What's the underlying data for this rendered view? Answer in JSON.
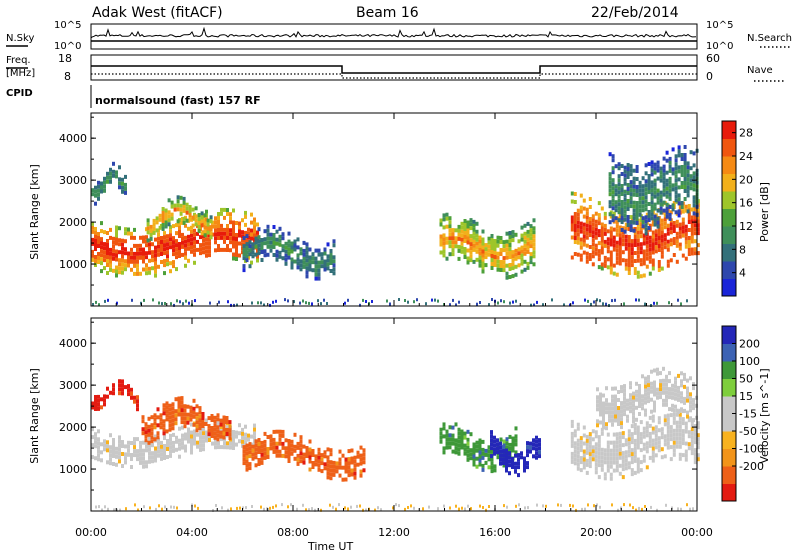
{
  "header": {
    "station": "Adak West (fitACF)",
    "beam": "Beam 16",
    "date": "22/Feb/2014"
  },
  "panels": {
    "nsky_label": "N.Sky",
    "nsky_ticks": [
      "10^5",
      "10^0"
    ],
    "nsearch_label": "N.Search",
    "nsearch_ticks": [
      "10^5",
      "10^0"
    ],
    "freq_label": "Freq.",
    "freq_unit": "[MHz]",
    "freq_ticks": [
      "18",
      "8"
    ],
    "nave_label": "Nave",
    "nave_ticks": [
      "60",
      "0"
    ],
    "cpid_label": "CPID",
    "cpid_value": "normalsound (fast) 157 RF"
  },
  "colors": {
    "power_scale": [
      "#1a25d8",
      "#2e47ad",
      "#33707a",
      "#3f8f5a",
      "#4da03a",
      "#9ec52a",
      "#f2b01b",
      "#f58a14",
      "#f0560f",
      "#e81b0b"
    ],
    "velocity_scale": [
      "#e31b11",
      "#ee6018",
      "#f2941a",
      "#f8b21f",
      "#c8c8c8",
      "#c8c8c8",
      "#7ece3c",
      "#3e9838",
      "#3c62b3",
      "#2427b8"
    ]
  },
  "chart_data": [
    {
      "type": "heatmap",
      "name": "power",
      "ylabel": "Slant Range [km]",
      "y_ticks": [
        "1000",
        "2000",
        "3000",
        "4000"
      ],
      "ylim": [
        0,
        4600
      ],
      "colorbar_label": "Power [dB]",
      "colorbar_ticks": [
        "4",
        "8",
        "12",
        "16",
        "20",
        "24",
        "28"
      ],
      "colorbar_range": [
        0,
        30
      ],
      "regions": [
        {
          "t": [
            0.0,
            6.6
          ],
          "range": [
            950,
            2100
          ],
          "peak": [
            1200,
            1700
          ],
          "level": "high"
        },
        {
          "t": [
            0.0,
            1.4
          ],
          "range": [
            2700,
            3200
          ],
          "level": "low"
        },
        {
          "t": [
            2.2,
            4.8
          ],
          "range": [
            1800,
            2400
          ],
          "level": "mid"
        },
        {
          "t": [
            6.0,
            9.6
          ],
          "range": [
            900,
            1700
          ],
          "level": "low"
        },
        {
          "t": [
            13.8,
            17.6
          ],
          "range": [
            900,
            2000
          ],
          "peak": [
            1200,
            1700
          ],
          "level": "mid"
        },
        {
          "t": [
            19.0,
            24.0
          ],
          "range": [
            950,
            2500
          ],
          "peak": [
            1000,
            1400
          ],
          "level": "high"
        },
        {
          "t": [
            20.5,
            24.0
          ],
          "range": [
            1900,
            3600
          ],
          "level": "low"
        }
      ]
    },
    {
      "type": "heatmap",
      "name": "velocity",
      "ylabel": "Slant Range [km]",
      "y_ticks": [
        "1000",
        "2000",
        "3000",
        "4000"
      ],
      "ylim": [
        0,
        4600
      ],
      "xlabel": "Time UT",
      "x_ticks": [
        "00:00",
        "04:00",
        "08:00",
        "12:00",
        "16:00",
        "20:00",
        "00:00"
      ],
      "xlim": [
        0,
        24
      ],
      "colorbar_label": "Velocity [m s^-1]",
      "colorbar_ticks": [
        "200",
        "100",
        "50",
        "15",
        "-15",
        "-50",
        "-100",
        "-200"
      ],
      "regions": [
        {
          "t": [
            0.0,
            6.5
          ],
          "range": [
            1300,
            2000
          ],
          "velocity": "-15..15"
        },
        {
          "t": [
            0.0,
            1.8
          ],
          "range": [
            2600,
            3000
          ],
          "velocity": "-200"
        },
        {
          "t": [
            2.0,
            5.5
          ],
          "range": [
            1800,
            2500
          ],
          "velocity": "-100"
        },
        {
          "t": [
            6.0,
            10.8
          ],
          "range": [
            1000,
            1700
          ],
          "velocity": "-50..-100"
        },
        {
          "t": [
            13.8,
            16.8
          ],
          "range": [
            1200,
            1900
          ],
          "velocity": "50..100"
        },
        {
          "t": [
            15.8,
            17.8
          ],
          "range": [
            1100,
            1700
          ],
          "velocity": "200"
        },
        {
          "t": [
            19.0,
            24.0
          ],
          "range": [
            1000,
            2200
          ],
          "velocity": "-15..15"
        },
        {
          "t": [
            20.0,
            24.0
          ],
          "range": [
            2200,
            3200
          ],
          "velocity": "-15..15"
        }
      ]
    }
  ]
}
